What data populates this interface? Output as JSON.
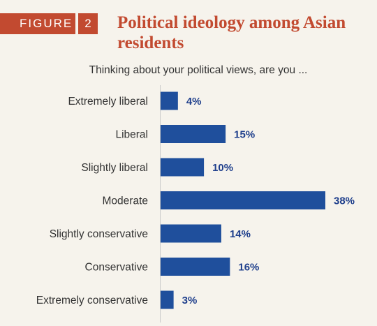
{
  "figure": {
    "word": "FIGURE",
    "number": "2"
  },
  "chart_data": {
    "type": "bar",
    "orientation": "horizontal",
    "title": "Political ideology among Asian residents",
    "subtitle": "Thinking about your political views, are you ...",
    "categories": [
      "Extremely liberal",
      "Liberal",
      "Slightly liberal",
      "Moderate",
      "Slightly conservative",
      "Conservative",
      "Extremely conservative"
    ],
    "values": [
      4,
      15,
      10,
      38,
      14,
      16,
      3
    ],
    "value_labels": [
      "4%",
      "15%",
      "10%",
      "38%",
      "14%",
      "16%",
      "3%"
    ],
    "xlim": [
      0,
      38
    ],
    "grid": false,
    "colors": {
      "bar": "#1f4f9c",
      "accent": "#c24a30",
      "value_text": "#1f3f8c"
    }
  }
}
